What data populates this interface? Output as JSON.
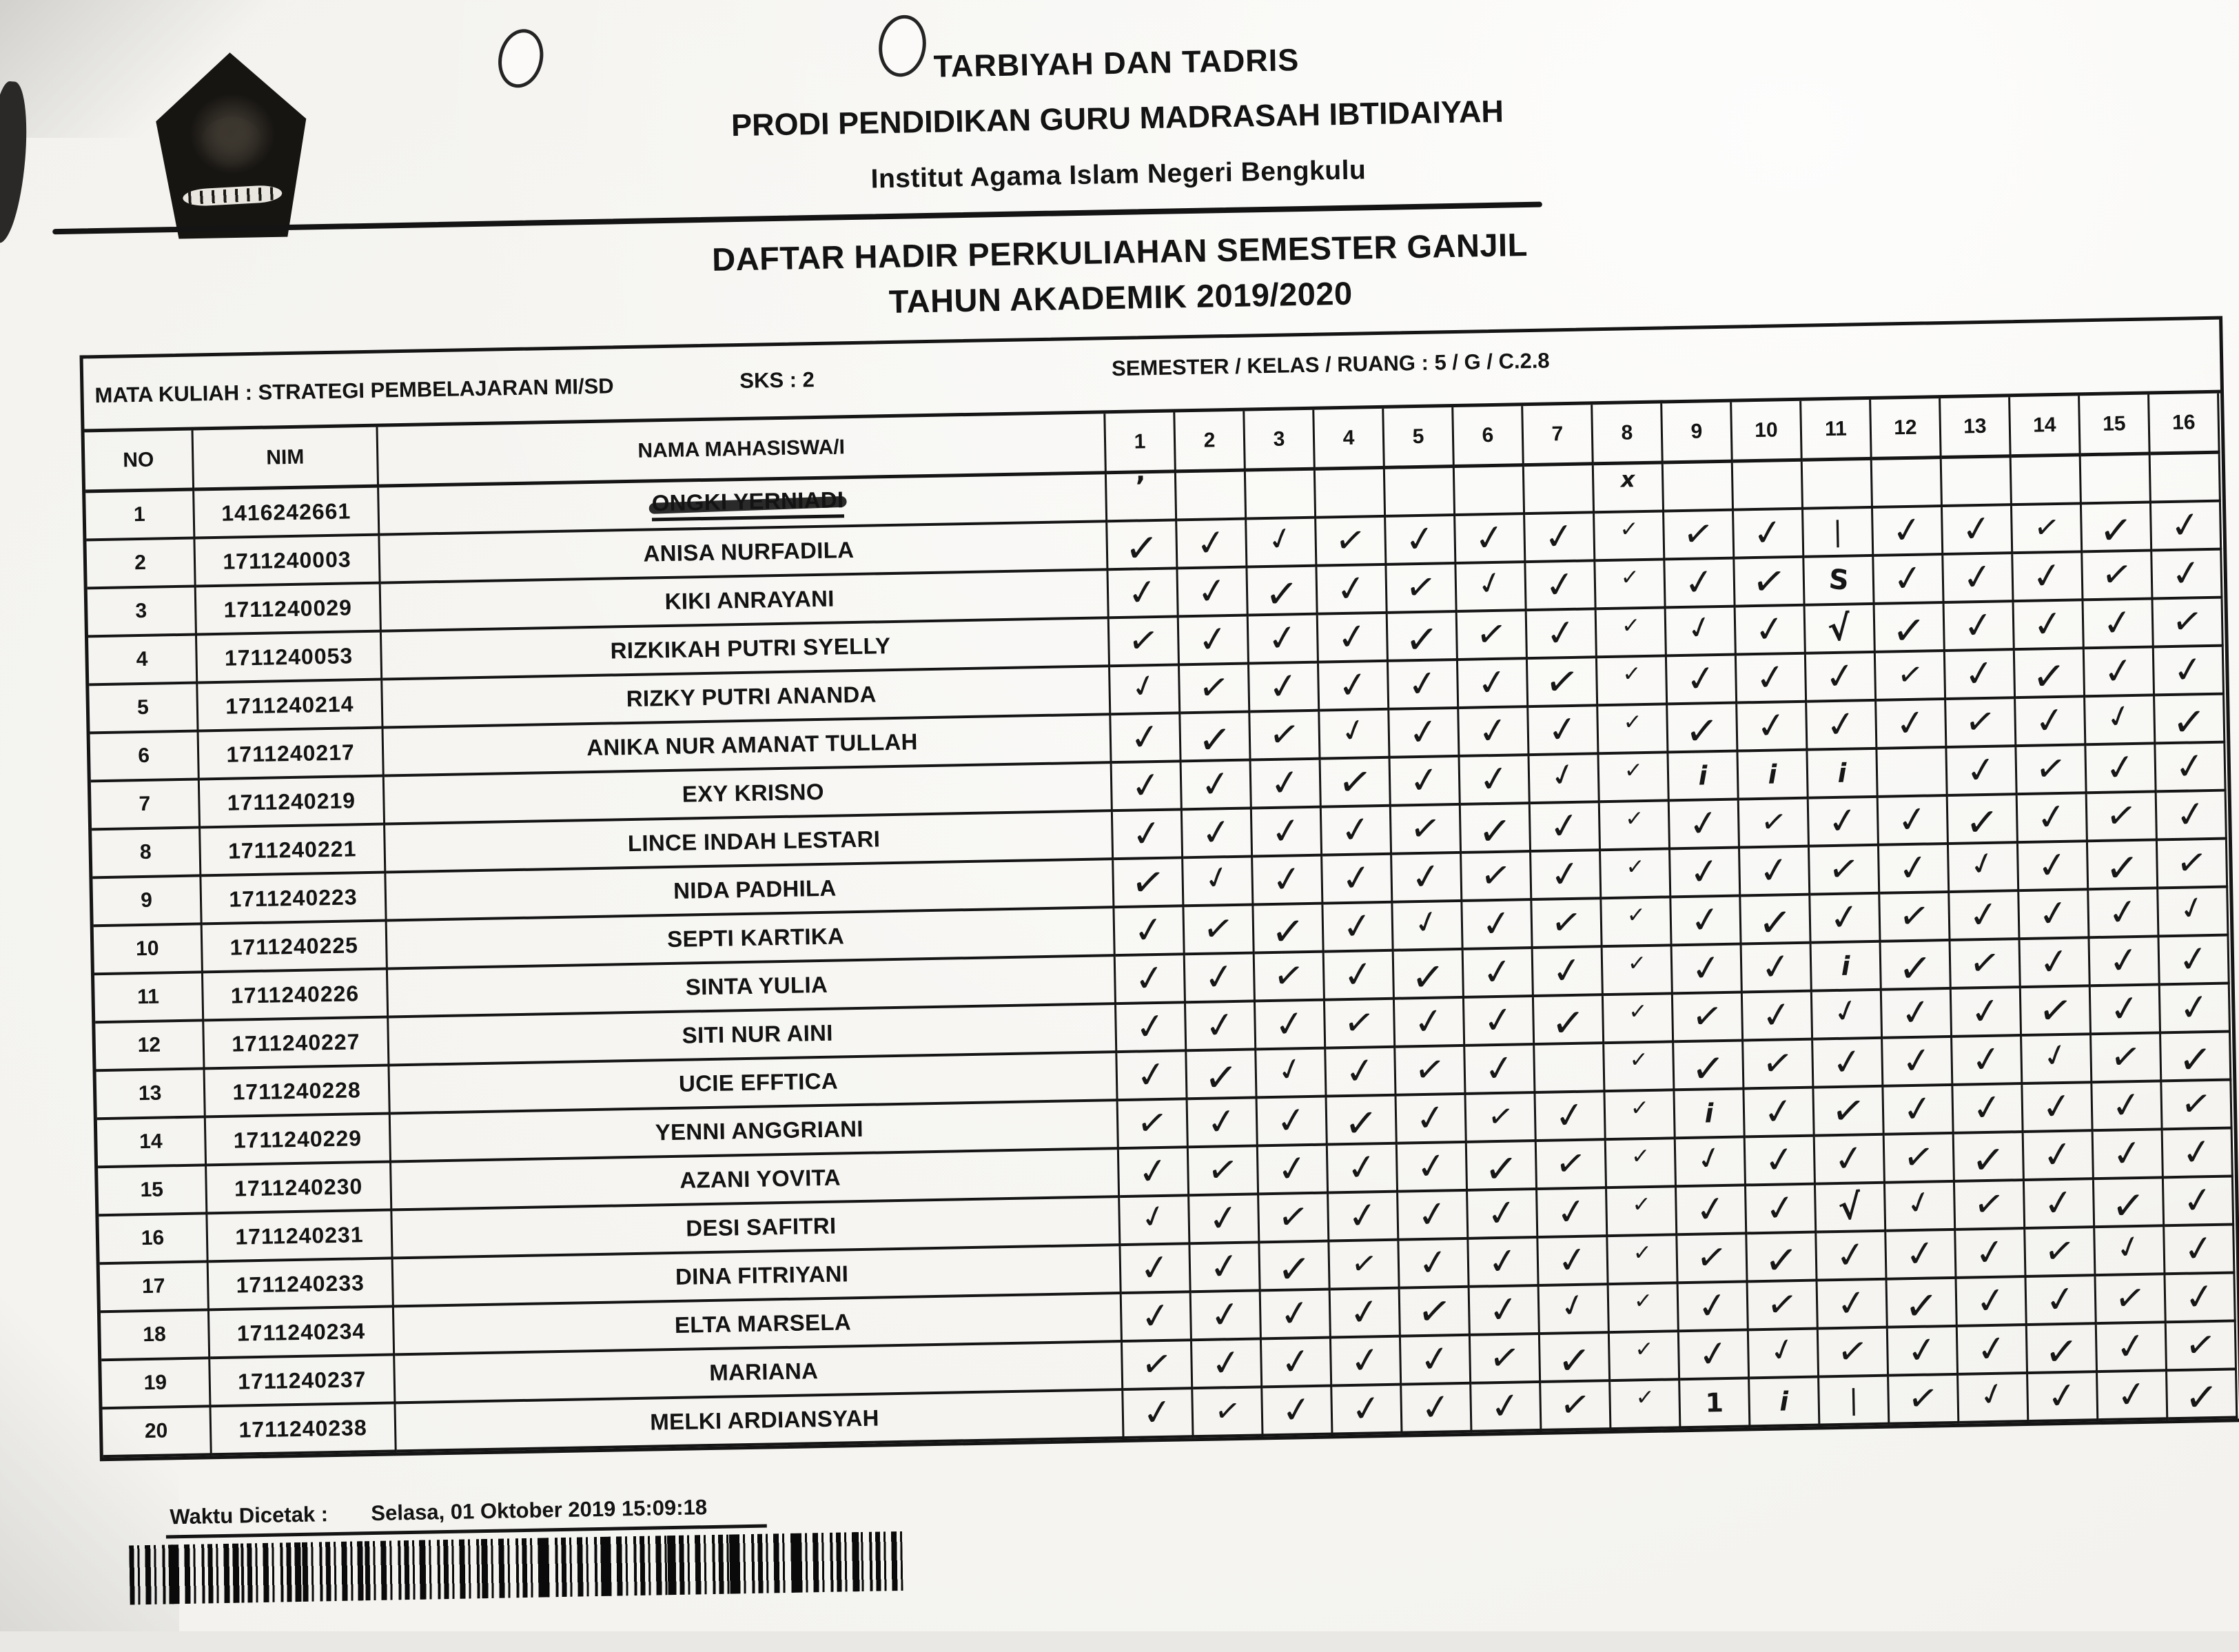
{
  "header": {
    "faculty": "TARBIYAH DAN TADRIS",
    "program": "PRODI PENDIDIKAN GURU MADRASAH IBTIDAIYAH",
    "institution": "Institut Agama Islam Negeri Bengkulu",
    "title_line1": "DAFTAR HADIR PERKULIAHAN SEMESTER GANJIL",
    "title_line2": "TAHUN AKADEMIK 2019/2020"
  },
  "course": {
    "mata_kuliah": "MATA KULIAH : STRATEGI PEMBELAJARAN MI/SD",
    "sks": "SKS : 2",
    "semester_kelas_ruang": "SEMESTER / KELAS / RUANG : 5 / G / C.2.8"
  },
  "table": {
    "columns": [
      "NO",
      "NIM",
      "NAMA MAHASISWA/I"
    ],
    "meeting_columns": [
      "1",
      "2",
      "3",
      "4",
      "5",
      "6",
      "7",
      "8",
      "9",
      "10",
      "11",
      "12",
      "13",
      "14",
      "15",
      "16"
    ],
    "rows": [
      {
        "no": "1",
        "nim": "1416242661",
        "name": "ONGKI YERNIADI",
        "struck": true,
        "marks": [
          "'",
          "",
          "",
          "",
          "",
          "",
          "",
          "x",
          "",
          "",
          "",
          "",
          "",
          "",
          "",
          ""
        ]
      },
      {
        "no": "2",
        "nim": "1711240003",
        "name": "ANISA NURFADILA",
        "struck": false,
        "marks": [
          "v",
          "v",
          "v",
          "v",
          "v",
          "v",
          "v",
          "j",
          "v",
          "v",
          "|",
          "v",
          "v",
          "v",
          "v",
          "v"
        ]
      },
      {
        "no": "3",
        "nim": "1711240029",
        "name": "KIKI ANRAYANI",
        "struck": false,
        "marks": [
          "v",
          "v",
          "v",
          "v",
          "v",
          "v",
          "v",
          "j",
          "v",
          "v",
          "S",
          "v",
          "v",
          "v",
          "v",
          "v"
        ]
      },
      {
        "no": "4",
        "nim": "1711240053",
        "name": "RIZKIKAH PUTRI SYELLY",
        "struck": false,
        "marks": [
          "v",
          "v",
          "v",
          "v",
          "v",
          "v",
          "v",
          "j",
          "v",
          "v",
          "N",
          "v",
          "v",
          "v",
          "v",
          "v"
        ]
      },
      {
        "no": "5",
        "nim": "1711240214",
        "name": "RIZKY PUTRI ANANDA",
        "struck": false,
        "marks": [
          "v",
          "v",
          "v",
          "v",
          "v",
          "v",
          "v",
          "j",
          "v",
          "v",
          "v",
          "v",
          "v",
          "v",
          "v",
          "v"
        ]
      },
      {
        "no": "6",
        "nim": "1711240217",
        "name": "ANIKA NUR AMANAT TULLAH",
        "struck": false,
        "marks": [
          "v",
          "v",
          "v",
          "v",
          "v",
          "v",
          "v",
          "j",
          "v",
          "v",
          "v",
          "v",
          "v",
          "v",
          "v",
          "v"
        ]
      },
      {
        "no": "7",
        "nim": "1711240219",
        "name": "EXY KRISNO",
        "struck": false,
        "marks": [
          "v",
          "v",
          "v",
          "v",
          "v",
          "v",
          "v",
          "j",
          "i",
          "i",
          "i",
          "",
          "v",
          "v",
          "v",
          "v"
        ]
      },
      {
        "no": "8",
        "nim": "1711240221",
        "name": "LINCE INDAH LESTARI",
        "struck": false,
        "marks": [
          "v",
          "v",
          "v",
          "v",
          "v",
          "v",
          "v",
          "j",
          "v",
          "v",
          "v",
          "v",
          "v",
          "v",
          "v",
          "v"
        ]
      },
      {
        "no": "9",
        "nim": "1711240223",
        "name": "NIDA PADHILA",
        "struck": false,
        "marks": [
          "v",
          "v",
          "v",
          "v",
          "v",
          "v",
          "v",
          "j",
          "v",
          "v",
          "v",
          "v",
          "v",
          "v",
          "v",
          "v"
        ]
      },
      {
        "no": "10",
        "nim": "1711240225",
        "name": "SEPTI KARTIKA",
        "struck": false,
        "marks": [
          "v",
          "v",
          "v",
          "v",
          "v",
          "v",
          "v",
          "j",
          "v",
          "v",
          "v",
          "v",
          "v",
          "v",
          "v",
          "v"
        ]
      },
      {
        "no": "11",
        "nim": "1711240226",
        "name": "SINTA YULIA",
        "struck": false,
        "marks": [
          "v",
          "v",
          "v",
          "v",
          "v",
          "v",
          "v",
          "j",
          "v",
          "v",
          "i",
          "v",
          "v",
          "v",
          "v",
          "v"
        ]
      },
      {
        "no": "12",
        "nim": "1711240227",
        "name": "SITI NUR AINI",
        "struck": false,
        "marks": [
          "v",
          "v",
          "v",
          "v",
          "v",
          "v",
          "v",
          "j",
          "v",
          "v",
          "v",
          "v",
          "v",
          "v",
          "v",
          "v"
        ]
      },
      {
        "no": "13",
        "nim": "1711240228",
        "name": "UCIE EFFTICA",
        "struck": false,
        "marks": [
          "v",
          "v",
          "v",
          "v",
          "v",
          "v",
          "",
          "j",
          "v",
          "v",
          "v",
          "v",
          "v",
          "v",
          "v",
          "v"
        ]
      },
      {
        "no": "14",
        "nim": "1711240229",
        "name": "YENNI ANGGRIANI",
        "struck": false,
        "marks": [
          "v",
          "v",
          "v",
          "v",
          "v",
          "v",
          "v",
          "j",
          "i",
          "v",
          "v",
          "v",
          "v",
          "v",
          "v",
          "v"
        ]
      },
      {
        "no": "15",
        "nim": "1711240230",
        "name": "AZANI YOVITA",
        "struck": false,
        "marks": [
          "v",
          "v",
          "v",
          "v",
          "v",
          "v",
          "v",
          "j",
          "v",
          "v",
          "v",
          "v",
          "v",
          "v",
          "v",
          "v"
        ]
      },
      {
        "no": "16",
        "nim": "1711240231",
        "name": "DESI SAFITRI",
        "struck": false,
        "marks": [
          "v",
          "v",
          "v",
          "v",
          "v",
          "v",
          "v",
          "j",
          "v",
          "v",
          "N",
          "v",
          "v",
          "v",
          "v",
          "v"
        ]
      },
      {
        "no": "17",
        "nim": "1711240233",
        "name": "DINA FITRIYANI",
        "struck": false,
        "marks": [
          "v",
          "v",
          "v",
          "v",
          "v",
          "v",
          "v",
          "j",
          "v",
          "v",
          "v",
          "v",
          "v",
          "v",
          "v",
          "v"
        ]
      },
      {
        "no": "18",
        "nim": "1711240234",
        "name": "ELTA MARSELA",
        "struck": false,
        "marks": [
          "v",
          "v",
          "v",
          "v",
          "v",
          "v",
          "v",
          "j",
          "v",
          "v",
          "v",
          "v",
          "v",
          "v",
          "v",
          "v"
        ]
      },
      {
        "no": "19",
        "nim": "1711240237",
        "name": "MARIANA",
        "struck": false,
        "marks": [
          "v",
          "v",
          "v",
          "v",
          "v",
          "v",
          "v",
          "j",
          "v",
          "v",
          "v",
          "v",
          "v",
          "v",
          "v",
          "v"
        ]
      },
      {
        "no": "20",
        "nim": "1711240238",
        "name": "MELKI ARDIANSYAH",
        "struck": false,
        "marks": [
          "v",
          "v",
          "v",
          "v",
          "v",
          "v",
          "v",
          "j",
          "1",
          "i",
          "|",
          "v",
          "v",
          "v",
          "v",
          "v"
        ]
      }
    ]
  },
  "footer": {
    "printed_label": "Waktu Dicetak :",
    "printed_value": "Selasa, 01 Oktober 2019 15:09:18"
  },
  "colors": {
    "ink": "#141414",
    "paper": "#f6f5f2"
  }
}
